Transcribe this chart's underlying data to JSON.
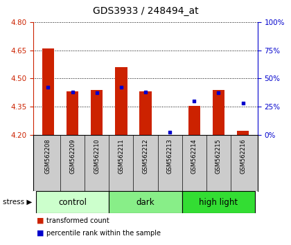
{
  "title": "GDS3933 / 248494_at",
  "samples": [
    "GSM562208",
    "GSM562209",
    "GSM562210",
    "GSM562211",
    "GSM562212",
    "GSM562213",
    "GSM562214",
    "GSM562215",
    "GSM562216"
  ],
  "transformed_count": [
    4.66,
    4.43,
    4.44,
    4.56,
    4.43,
    4.2,
    4.355,
    4.44,
    4.22
  ],
  "percentile_rank": [
    42,
    38,
    37,
    42,
    38,
    2,
    30,
    37,
    28
  ],
  "ylim_left": [
    4.2,
    4.8
  ],
  "ylim_right": [
    0,
    100
  ],
  "yticks_left": [
    4.2,
    4.35,
    4.5,
    4.65,
    4.8
  ],
  "yticks_right": [
    0,
    25,
    50,
    75,
    100
  ],
  "bar_color": "#cc2200",
  "dot_color": "#0000cc",
  "bar_bottom": 4.2,
  "groups": [
    {
      "label": "control",
      "start": 0,
      "end": 3,
      "color": "#ccffcc"
    },
    {
      "label": "dark",
      "start": 3,
      "end": 6,
      "color": "#88ee88"
    },
    {
      "label": "high light",
      "start": 6,
      "end": 9,
      "color": "#33dd33"
    }
  ],
  "grid_style": "dotted",
  "sample_bg_color": "#cccccc",
  "right_label_suffix": "%"
}
